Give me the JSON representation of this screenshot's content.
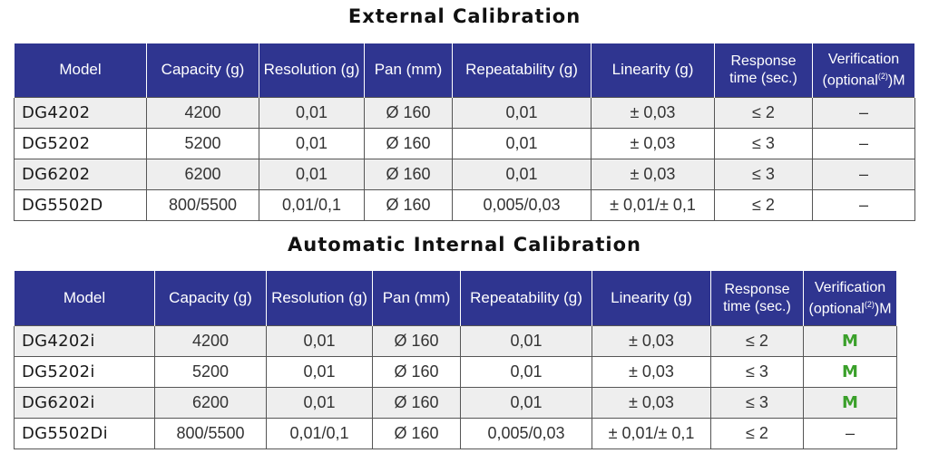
{
  "external": {
    "title": "External Calibration",
    "headers": {
      "model": "Model",
      "capacity": "Capacity (g)",
      "resolution": "Resolution (g)",
      "pan": "Pan (mm)",
      "repeatability": "Repeatability (g)",
      "linearity": "Linearity (g)",
      "response": "Response time (sec.)",
      "verification": "Verification (optional",
      "verification_sup": "(2)",
      "verification_suffix": ")M"
    },
    "rows": [
      {
        "model": "DG4202",
        "capacity": "4200",
        "resolution": "0,01",
        "pan": "Ø 160",
        "repeatability": "0,01",
        "linearity": "± 0,03",
        "response": "≤ 2",
        "verification": "–"
      },
      {
        "model": "DG5202",
        "capacity": "5200",
        "resolution": "0,01",
        "pan": "Ø 160",
        "repeatability": "0,01",
        "linearity": "± 0,03",
        "response": "≤ 3",
        "verification": "–"
      },
      {
        "model": "DG6202",
        "capacity": "6200",
        "resolution": "0,01",
        "pan": "Ø 160",
        "repeatability": "0,01",
        "linearity": "± 0,03",
        "response": "≤ 3",
        "verification": "–"
      },
      {
        "model": "DG5502D",
        "capacity": "800/5500",
        "resolution": "0,01/0,1",
        "pan": "Ø 160",
        "repeatability": "0,005/0,03",
        "linearity": "± 0,01/± 0,1",
        "response": "≤ 2",
        "verification": "–"
      }
    ]
  },
  "internal": {
    "title": "Automatic Internal Calibration",
    "headers": {
      "model": "Model",
      "capacity": "Capacity (g)",
      "resolution": "Resolution (g)",
      "pan": "Pan (mm)",
      "repeatability": "Repeatability (g)",
      "linearity": "Linearity (g)",
      "response": "Response time (sec.)",
      "verification": "Verification (optional",
      "verification_sup": "(2)",
      "verification_suffix": ")M"
    },
    "rows": [
      {
        "model": "DG4202i",
        "capacity": "4200",
        "resolution": "0,01",
        "pan": "Ø 160",
        "repeatability": "0,01",
        "linearity": "± 0,03",
        "response": "≤ 2",
        "verification": "M",
        "verification_highlight": true
      },
      {
        "model": "DG5202i",
        "capacity": "5200",
        "resolution": "0,01",
        "pan": "Ø 160",
        "repeatability": "0,01",
        "linearity": "± 0,03",
        "response": "≤ 3",
        "verification": "M",
        "verification_highlight": true
      },
      {
        "model": "DG6202i",
        "capacity": "6200",
        "resolution": "0,01",
        "pan": "Ø 160",
        "repeatability": "0,01",
        "linearity": "± 0,03",
        "response": "≤ 3",
        "verification": "M",
        "verification_highlight": true
      },
      {
        "model": "DG5502Di",
        "capacity": "800/5500",
        "resolution": "0,01/0,1",
        "pan": "Ø 160",
        "repeatability": "0,005/0,03",
        "linearity": "± 0,01/± 0,1",
        "response": "≤ 2",
        "verification": "–",
        "verification_highlight": false
      }
    ]
  },
  "colors": {
    "header_bg": "#2f3590",
    "verification_mark": "#3aa02a",
    "row_shade": "#eeeeee"
  }
}
